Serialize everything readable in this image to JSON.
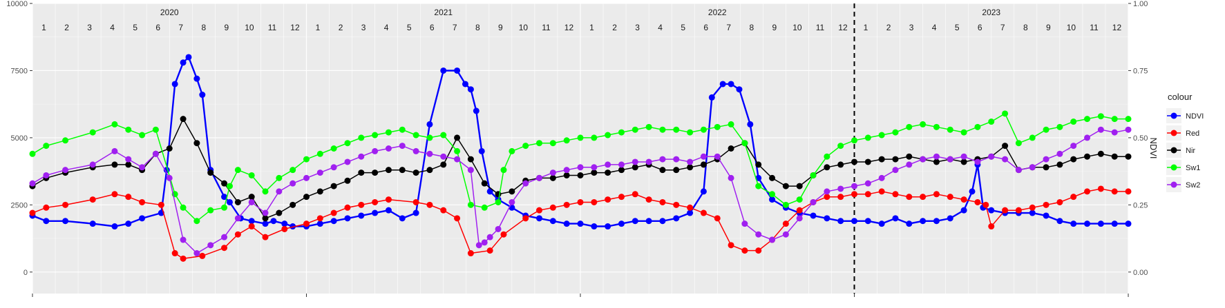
{
  "chart_data": {
    "type": "line",
    "y_left": {
      "ticks": [
        0,
        2500,
        5000,
        7500,
        10000
      ],
      "tick_labels": [
        "0",
        "2500",
        "5000",
        "7500",
        "10000"
      ],
      "range": [
        -800,
        10000
      ]
    },
    "y_right": {
      "label": "NDVI",
      "ticks": [
        0,
        0.25,
        0.5,
        0.75,
        1.0
      ],
      "tick_labels": [
        "0.00",
        "0.25",
        "0.50",
        "0.75",
        "1.00"
      ],
      "range": [
        -0.08,
        1.0
      ]
    },
    "x_range_months": [
      2020.0,
      2024.0
    ],
    "grid": true,
    "years": [
      "2020",
      "2021",
      "2022",
      "2023"
    ],
    "months": [
      "1",
      "2",
      "3",
      "4",
      "5",
      "6",
      "7",
      "8",
      "9",
      "10",
      "11",
      "12"
    ],
    "vline_x": 2023.0,
    "legend": {
      "title": "colour",
      "position": "right"
    },
    "series": [
      {
        "name": "NDVI",
        "color": "#0000ff",
        "axis": "right",
        "x": [
          2020.0,
          2020.05,
          2020.12,
          2020.22,
          2020.3,
          2020.35,
          2020.4,
          2020.47,
          2020.49,
          2020.52,
          2020.55,
          2020.57,
          2020.6,
          2020.62,
          2020.65,
          2020.7,
          2020.72,
          2020.76,
          2020.8,
          2020.85,
          2020.88,
          2020.92,
          2020.95,
          2021.0,
          2021.05,
          2021.1,
          2021.15,
          2021.2,
          2021.25,
          2021.3,
          2021.35,
          2021.4,
          2021.45,
          2021.5,
          2021.55,
          2021.58,
          2021.6,
          2021.62,
          2021.64,
          2021.67,
          2021.7,
          2021.75,
          2021.8,
          2021.85,
          2021.9,
          2021.95,
          2022.0,
          2022.05,
          2022.1,
          2022.15,
          2022.2,
          2022.25,
          2022.3,
          2022.35,
          2022.4,
          2022.45,
          2022.48,
          2022.52,
          2022.55,
          2022.58,
          2022.62,
          2022.65,
          2022.7,
          2022.75,
          2022.8,
          2022.85,
          2022.9,
          2022.95,
          2023.0,
          2023.05,
          2023.1,
          2023.15,
          2023.2,
          2023.25,
          2023.3,
          2023.35,
          2023.4,
          2023.43,
          2023.45,
          2023.47,
          2023.5,
          2023.55,
          2023.6,
          2023.65,
          2023.7,
          2023.75,
          2023.8,
          2023.85,
          2023.9,
          2023.95,
          2024.0
        ],
        "y": [
          0.21,
          0.19,
          0.19,
          0.18,
          0.17,
          0.18,
          0.2,
          0.22,
          0.38,
          0.7,
          0.78,
          0.8,
          0.72,
          0.66,
          0.38,
          0.28,
          0.26,
          0.2,
          0.19,
          0.18,
          0.19,
          0.18,
          0.17,
          0.17,
          0.18,
          0.19,
          0.2,
          0.21,
          0.22,
          0.23,
          0.2,
          0.22,
          0.55,
          0.75,
          0.75,
          0.7,
          0.68,
          0.6,
          0.45,
          0.3,
          0.27,
          0.24,
          0.21,
          0.2,
          0.19,
          0.18,
          0.18,
          0.17,
          0.17,
          0.18,
          0.19,
          0.19,
          0.19,
          0.2,
          0.22,
          0.3,
          0.65,
          0.7,
          0.7,
          0.68,
          0.55,
          0.35,
          0.27,
          0.24,
          0.22,
          0.21,
          0.2,
          0.19,
          0.19,
          0.19,
          0.18,
          0.2,
          0.18,
          0.19,
          0.19,
          0.2,
          0.23,
          0.3,
          0.4,
          0.24,
          0.23,
          0.22,
          0.22,
          0.22,
          0.21,
          0.19,
          0.18,
          0.18,
          0.18,
          0.18,
          0.18
        ]
      },
      {
        "name": "Red",
        "color": "#ff0000",
        "axis": "left",
        "x": [
          2020.0,
          2020.05,
          2020.12,
          2020.22,
          2020.3,
          2020.35,
          2020.4,
          2020.47,
          2020.52,
          2020.55,
          2020.62,
          2020.7,
          2020.75,
          2020.8,
          2020.85,
          2020.92,
          2021.0,
          2021.05,
          2021.1,
          2021.15,
          2021.2,
          2021.25,
          2021.3,
          2021.4,
          2021.45,
          2021.5,
          2021.55,
          2021.6,
          2021.67,
          2021.72,
          2021.8,
          2021.85,
          2021.9,
          2021.95,
          2022.0,
          2022.05,
          2022.1,
          2022.15,
          2022.2,
          2022.25,
          2022.3,
          2022.35,
          2022.4,
          2022.45,
          2022.5,
          2022.55,
          2022.6,
          2022.65,
          2022.7,
          2022.75,
          2022.8,
          2022.85,
          2022.9,
          2022.95,
          2023.0,
          2023.05,
          2023.1,
          2023.15,
          2023.2,
          2023.25,
          2023.3,
          2023.35,
          2023.4,
          2023.45,
          2023.48,
          2023.5,
          2023.55,
          2023.6,
          2023.65,
          2023.7,
          2023.75,
          2023.8,
          2023.85,
          2023.9,
          2023.95,
          2024.0
        ],
        "y": [
          2200,
          2400,
          2500,
          2700,
          2900,
          2800,
          2600,
          2500,
          700,
          500,
          600,
          900,
          1400,
          1700,
          1300,
          1600,
          1800,
          2000,
          2200,
          2400,
          2500,
          2600,
          2700,
          2600,
          2500,
          2300,
          2000,
          700,
          800,
          1400,
          2000,
          2300,
          2400,
          2500,
          2600,
          2600,
          2700,
          2800,
          2900,
          2700,
          2600,
          2500,
          2400,
          2200,
          2000,
          1000,
          800,
          800,
          1200,
          1800,
          2300,
          2600,
          2800,
          2800,
          2900,
          2900,
          3000,
          2900,
          2800,
          2800,
          2900,
          2800,
          2700,
          2600,
          2500,
          1700,
          2300,
          2300,
          2400,
          2500,
          2600,
          2800,
          3000,
          3100,
          3000,
          3000
        ]
      },
      {
        "name": "Nir",
        "color": "#000000",
        "axis": "left",
        "x": [
          2020.0,
          2020.05,
          2020.12,
          2020.22,
          2020.3,
          2020.35,
          2020.4,
          2020.45,
          2020.5,
          2020.55,
          2020.6,
          2020.65,
          2020.7,
          2020.75,
          2020.8,
          2020.85,
          2020.9,
          2020.95,
          2021.0,
          2021.05,
          2021.1,
          2021.15,
          2021.2,
          2021.25,
          2021.3,
          2021.35,
          2021.4,
          2021.45,
          2021.5,
          2021.55,
          2021.6,
          2021.65,
          2021.7,
          2021.75,
          2021.8,
          2021.85,
          2021.9,
          2021.95,
          2022.0,
          2022.05,
          2022.1,
          2022.15,
          2022.2,
          2022.25,
          2022.3,
          2022.35,
          2022.4,
          2022.45,
          2022.5,
          2022.55,
          2022.6,
          2022.65,
          2022.7,
          2022.75,
          2022.8,
          2022.85,
          2022.9,
          2022.95,
          2023.0,
          2023.05,
          2023.1,
          2023.15,
          2023.2,
          2023.25,
          2023.3,
          2023.35,
          2023.4,
          2023.45,
          2023.5,
          2023.55,
          2023.6,
          2023.65,
          2023.7,
          2023.75,
          2023.8,
          2023.85,
          2023.9,
          2023.95,
          2024.0
        ],
        "y": [
          3200,
          3500,
          3700,
          3900,
          4000,
          4000,
          3800,
          4400,
          4600,
          5700,
          4800,
          3700,
          3300,
          2600,
          2800,
          2000,
          2200,
          2500,
          2800,
          3000,
          3200,
          3400,
          3700,
          3700,
          3800,
          3800,
          3700,
          3800,
          4000,
          5000,
          4200,
          3300,
          2900,
          3000,
          3400,
          3500,
          3500,
          3600,
          3600,
          3700,
          3700,
          3800,
          3900,
          4000,
          3800,
          3800,
          3900,
          4000,
          4200,
          4600,
          4800,
          4000,
          3500,
          3200,
          3200,
          3600,
          3900,
          4000,
          4100,
          4100,
          4200,
          4200,
          4300,
          4200,
          4100,
          4200,
          4100,
          4200,
          4300,
          4700,
          3800,
          3900,
          3900,
          4000,
          4200,
          4300,
          4400,
          4300,
          4300
        ]
      },
      {
        "name": "Sw1",
        "color": "#00ff00",
        "axis": "left",
        "x": [
          2020.0,
          2020.05,
          2020.12,
          2020.22,
          2020.3,
          2020.35,
          2020.4,
          2020.45,
          2020.52,
          2020.55,
          2020.6,
          2020.65,
          2020.7,
          2020.72,
          2020.75,
          2020.8,
          2020.85,
          2020.9,
          2020.95,
          2021.0,
          2021.05,
          2021.1,
          2021.15,
          2021.2,
          2021.25,
          2021.3,
          2021.35,
          2021.4,
          2021.45,
          2021.5,
          2021.55,
          2021.6,
          2021.65,
          2021.7,
          2021.72,
          2021.75,
          2021.8,
          2021.85,
          2021.9,
          2021.95,
          2022.0,
          2022.05,
          2022.1,
          2022.15,
          2022.2,
          2022.25,
          2022.3,
          2022.35,
          2022.4,
          2022.45,
          2022.5,
          2022.55,
          2022.6,
          2022.65,
          2022.7,
          2022.75,
          2022.8,
          2022.85,
          2022.9,
          2022.95,
          2023.0,
          2023.05,
          2023.1,
          2023.15,
          2023.2,
          2023.25,
          2023.3,
          2023.35,
          2023.4,
          2023.45,
          2023.5,
          2023.55,
          2023.6,
          2023.65,
          2023.7,
          2023.75,
          2023.8,
          2023.85,
          2023.9,
          2023.95,
          2024.0
        ],
        "y": [
          4400,
          4700,
          4900,
          5200,
          5500,
          5300,
          5100,
          5300,
          2900,
          2400,
          1900,
          2300,
          2400,
          3200,
          3800,
          3600,
          3000,
          3500,
          3800,
          4200,
          4400,
          4600,
          4800,
          5000,
          5100,
          5200,
          5300,
          5100,
          5000,
          5100,
          4500,
          2500,
          2400,
          2600,
          3800,
          4500,
          4700,
          4800,
          4800,
          4900,
          5000,
          5000,
          5100,
          5200,
          5300,
          5400,
          5300,
          5300,
          5200,
          5300,
          5400,
          5500,
          4800,
          3200,
          2900,
          2500,
          2700,
          3600,
          4300,
          4700,
          4900,
          5000,
          5100,
          5200,
          5400,
          5500,
          5400,
          5300,
          5200,
          5400,
          5600,
          5900,
          4800,
          5000,
          5300,
          5400,
          5600,
          5700,
          5800,
          5700,
          5700
        ]
      },
      {
        "name": "Sw2",
        "color": "#a020f0",
        "axis": "left",
        "x": [
          2020.0,
          2020.05,
          2020.12,
          2020.22,
          2020.3,
          2020.35,
          2020.4,
          2020.45,
          2020.5,
          2020.55,
          2020.6,
          2020.65,
          2020.7,
          2020.75,
          2020.8,
          2020.85,
          2020.9,
          2020.95,
          2021.0,
          2021.05,
          2021.1,
          2021.15,
          2021.2,
          2021.25,
          2021.3,
          2021.35,
          2021.4,
          2021.45,
          2021.5,
          2021.55,
          2021.6,
          2021.63,
          2021.65,
          2021.67,
          2021.7,
          2021.75,
          2021.8,
          2021.85,
          2021.9,
          2021.95,
          2022.0,
          2022.05,
          2022.1,
          2022.15,
          2022.2,
          2022.25,
          2022.3,
          2022.35,
          2022.4,
          2022.45,
          2022.5,
          2022.55,
          2022.6,
          2022.65,
          2022.7,
          2022.75,
          2022.8,
          2022.85,
          2022.9,
          2022.95,
          2023.0,
          2023.05,
          2023.1,
          2023.15,
          2023.2,
          2023.25,
          2023.3,
          2023.35,
          2023.4,
          2023.45,
          2023.5,
          2023.55,
          2023.6,
          2023.65,
          2023.7,
          2023.75,
          2023.8,
          2023.85,
          2023.9,
          2023.95,
          2024.0
        ],
        "y": [
          3300,
          3600,
          3800,
          4000,
          4500,
          4200,
          3900,
          4400,
          3500,
          1200,
          700,
          1000,
          1300,
          2000,
          2600,
          2200,
          3000,
          3300,
          3500,
          3700,
          3900,
          4100,
          4300,
          4500,
          4600,
          4700,
          4500,
          4400,
          4300,
          4200,
          3800,
          1000,
          1100,
          1300,
          1600,
          2600,
          3300,
          3500,
          3700,
          3800,
          3900,
          3900,
          4000,
          4000,
          4100,
          4100,
          4200,
          4200,
          4100,
          4300,
          4300,
          3500,
          1800,
          1400,
          1200,
          1400,
          2000,
          2600,
          3000,
          3100,
          3200,
          3300,
          3500,
          3800,
          4000,
          4200,
          4300,
          4200,
          4300,
          4100,
          4300,
          4200,
          3800,
          3900,
          4200,
          4400,
          4700,
          5000,
          5300,
          5200,
          5300
        ]
      }
    ]
  }
}
